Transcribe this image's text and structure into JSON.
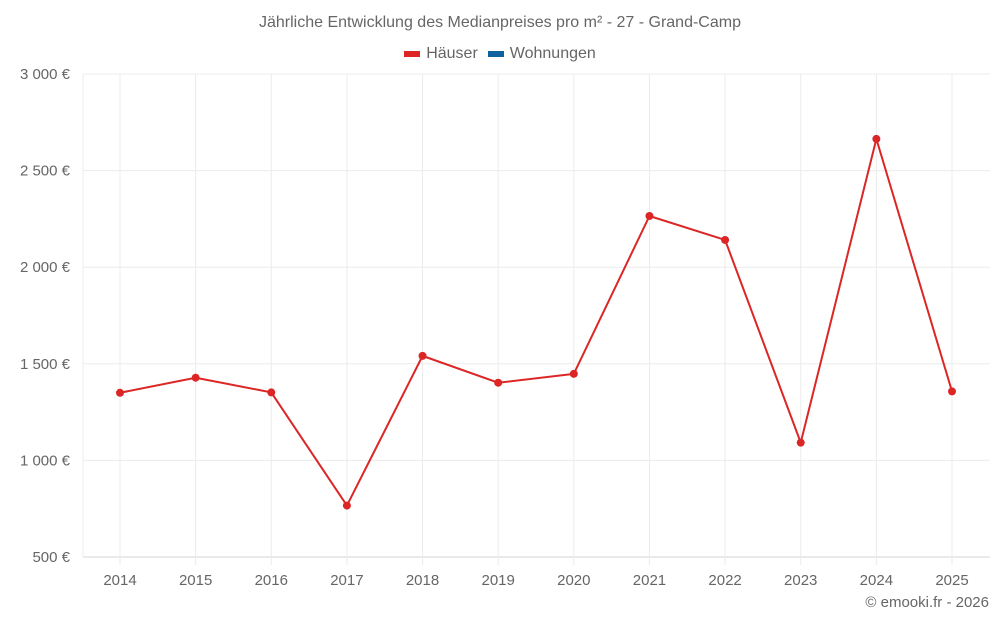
{
  "title": "Jährliche Entwicklung des Medianpreises pro m² - 27 - Grand-Camp",
  "legend": [
    {
      "label": "Häuser",
      "color": "#dc2626"
    },
    {
      "label": "Wohnungen",
      "color": "#0f62a0"
    }
  ],
  "credit": "© emooki.fr - 2026",
  "chart_data": {
    "type": "line",
    "title": "Jährliche Entwicklung des Medianpreises pro m² - 27 - Grand-Camp",
    "xlabel": "",
    "ylabel": "",
    "categories": [
      "2014",
      "2015",
      "2016",
      "2017",
      "2018",
      "2019",
      "2020",
      "2021",
      "2022",
      "2023",
      "2024",
      "2025"
    ],
    "series": [
      {
        "name": "Häuser",
        "color": "#dc2626",
        "values": [
          1350,
          1428,
          1352,
          766,
          1541,
          1402,
          1448,
          2265,
          2141,
          1092,
          2664,
          1357
        ]
      },
      {
        "name": "Wohnungen",
        "color": "#0f62a0",
        "values": []
      }
    ],
    "ylim": [
      500,
      3000
    ],
    "yticks": [
      500,
      1000,
      1500,
      2000,
      2500,
      3000
    ],
    "ytick_labels": [
      "500 €",
      "1 000 €",
      "1 500 €",
      "2 000 €",
      "2 500 €",
      "3 000 €"
    ],
    "grid": true,
    "legend_position": "top"
  }
}
